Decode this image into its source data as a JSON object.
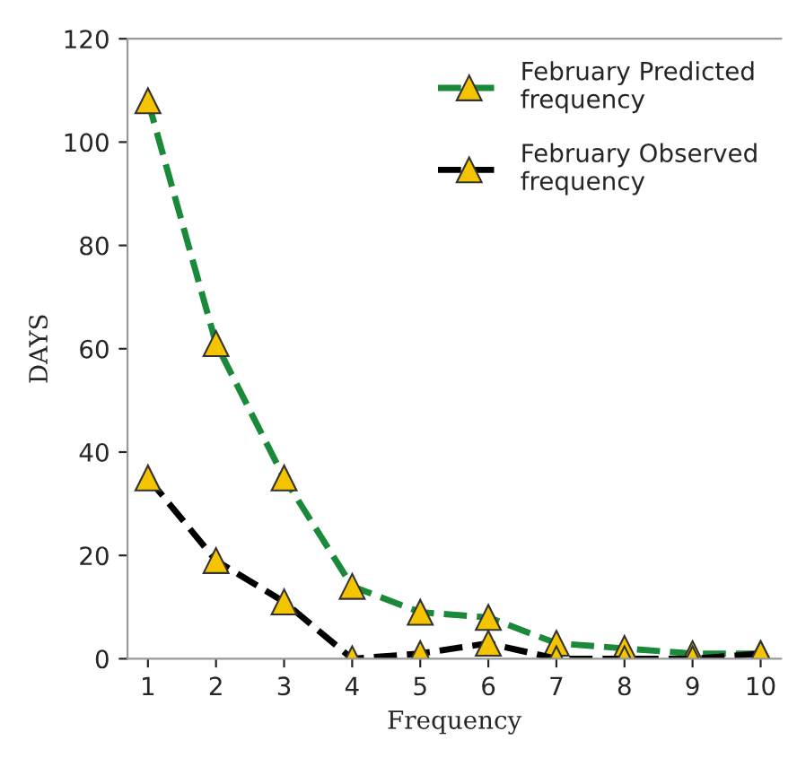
{
  "chart_data": {
    "type": "line",
    "xlabel": "Frequency",
    "ylabel": "DAYS",
    "categories": [
      "1",
      "2",
      "3",
      "4",
      "5",
      "6",
      "7",
      "8",
      "9",
      "10"
    ],
    "series": [
      {
        "name": "February Predicted frequency",
        "color": "#1a8a3a",
        "values": [
          108,
          61,
          35,
          14,
          9,
          8,
          3,
          2,
          1,
          1
        ]
      },
      {
        "name": "February Observed frequency",
        "color": "#000000",
        "values": [
          35,
          19,
          11,
          0,
          1,
          3,
          0,
          0,
          0,
          1
        ]
      }
    ],
    "ylim": [
      0,
      120
    ],
    "yticks": [
      0,
      20,
      40,
      60,
      80,
      100,
      120
    ],
    "marker": "triangle",
    "line_style": "dashed",
    "grid": false,
    "legend": "top right"
  }
}
